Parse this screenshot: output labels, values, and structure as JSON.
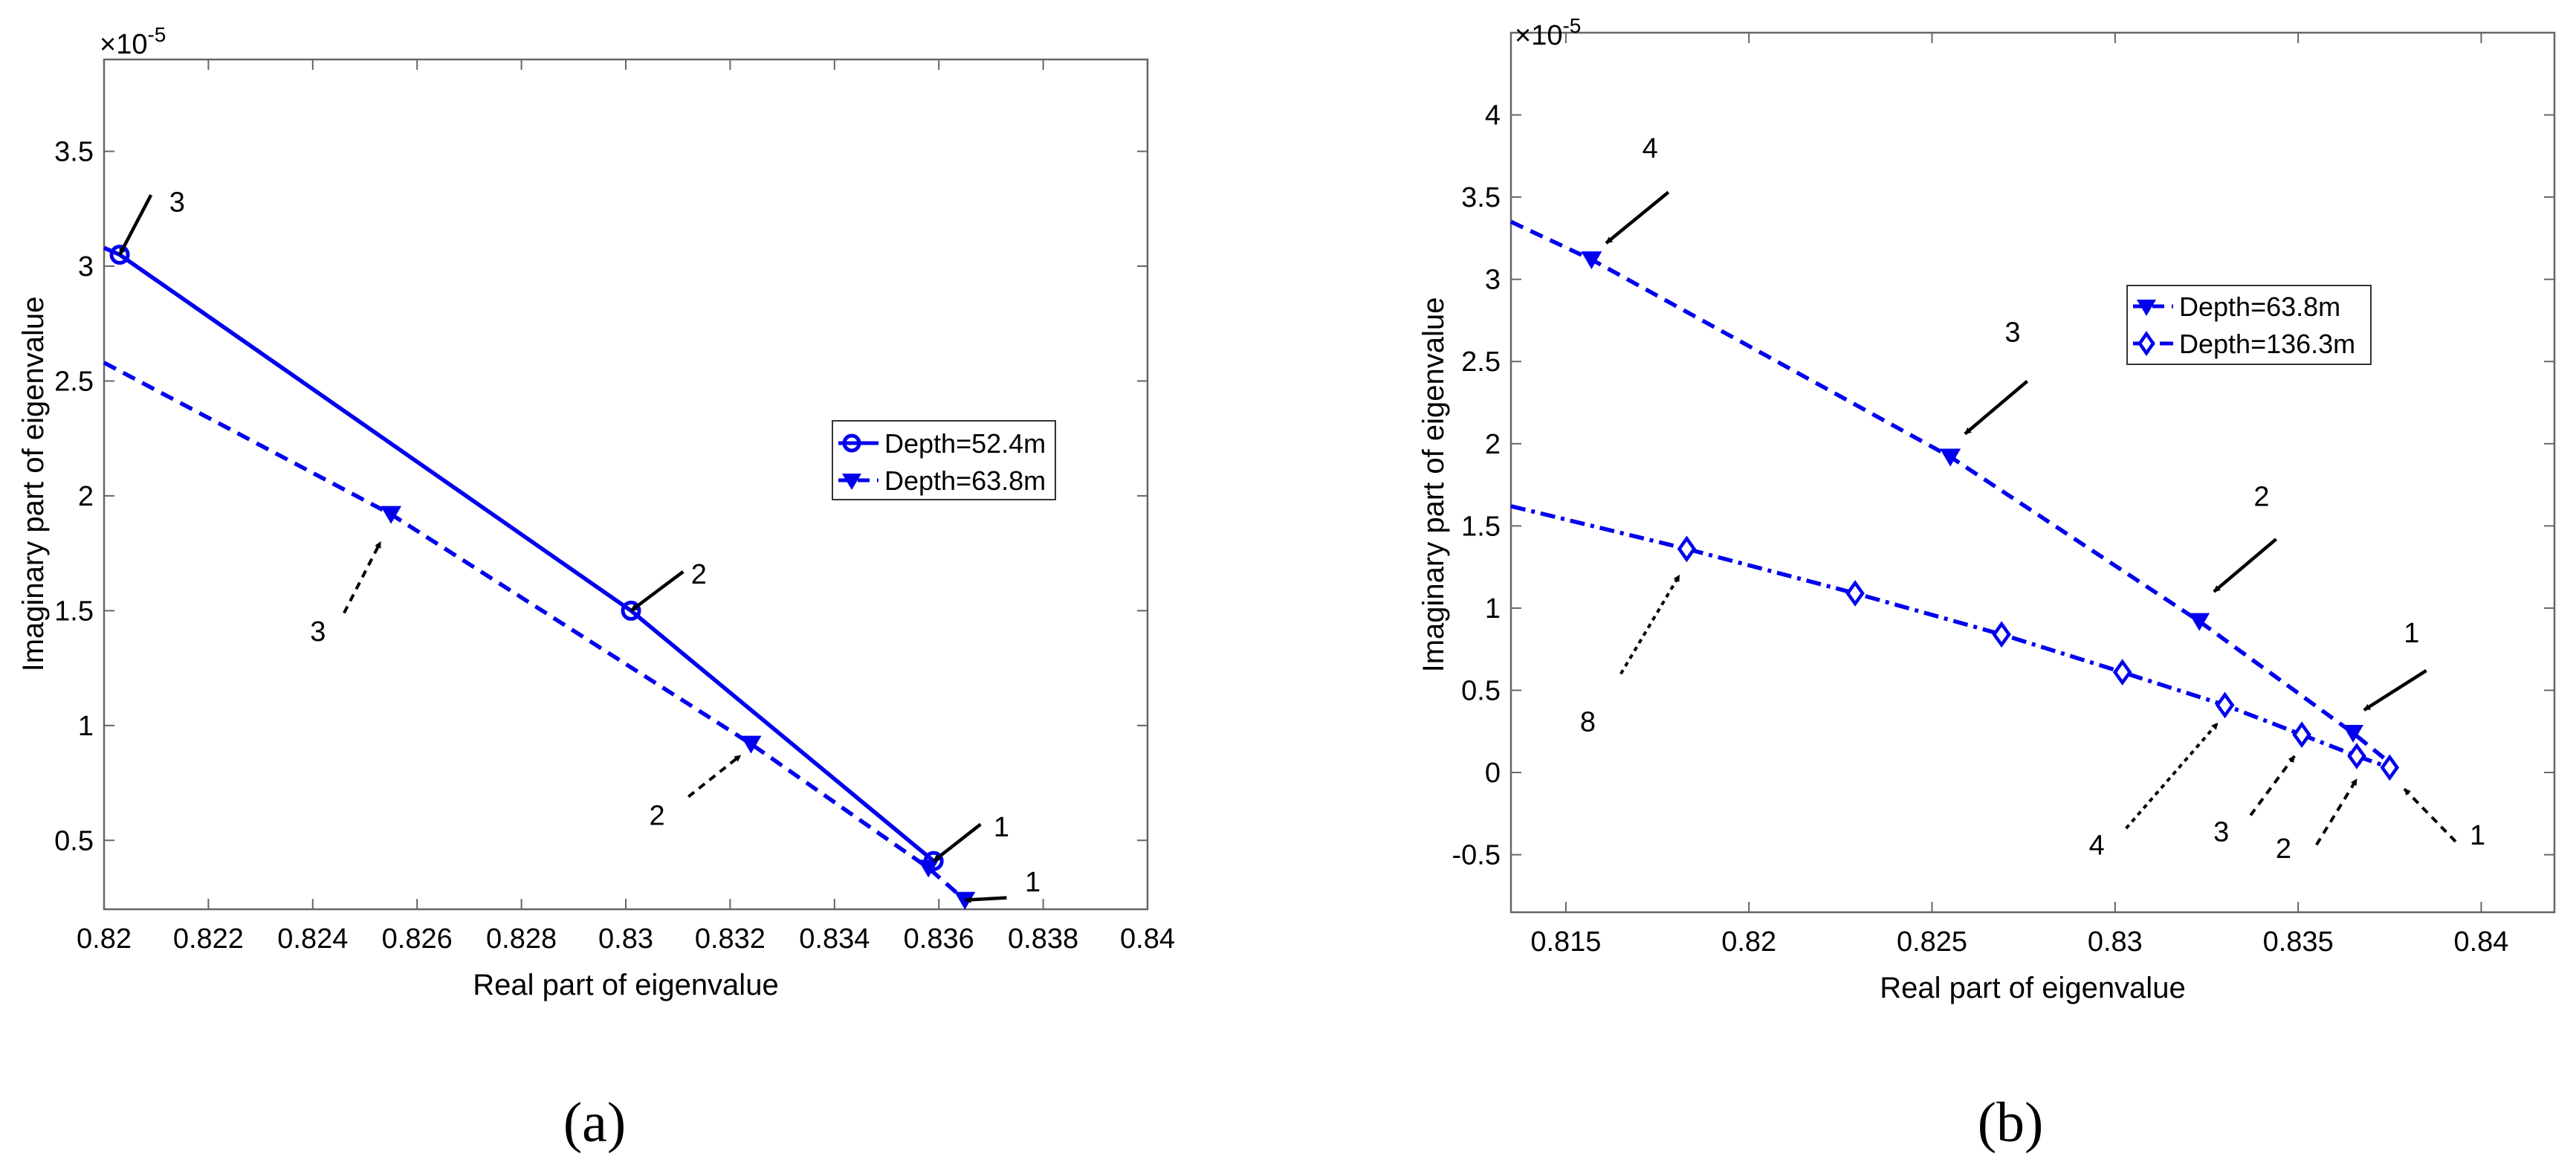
{
  "chart_data": [
    {
      "type": "line",
      "panel_label": "(a)",
      "title": "",
      "xlabel": "Real part of eigenvalue",
      "ylabel": "Imaginary part of eigenvalue",
      "y_multiplier": "×10-5",
      "y_multiplier_base": "×10",
      "y_multiplier_exp": "-5",
      "xlim": [
        0.82,
        0.84
      ],
      "ylim": [
        0.2,
        3.9
      ],
      "x_ticks": [
        0.82,
        0.822,
        0.824,
        0.826,
        0.828,
        0.83,
        0.832,
        0.834,
        0.836,
        0.838,
        0.84
      ],
      "x_tick_labels": [
        "0.82",
        "0.822",
        "0.824",
        "0.826",
        "0.828",
        "0.83",
        "0.832",
        "0.834",
        "0.836",
        "0.838",
        "0.84"
      ],
      "y_ticks": [
        0.5,
        1,
        1.5,
        2,
        2.5,
        3,
        3.5
      ],
      "y_tick_labels": [
        "0.5",
        "1",
        "1.5",
        "2",
        "2.5",
        "3",
        "3.5"
      ],
      "grid": false,
      "legend_position": "right",
      "series": [
        {
          "name": "Depth=52.4m",
          "marker": "circle",
          "line_style": "solid",
          "color": "#0000ee",
          "x": [
            0.82,
            0.8203,
            0.8301,
            0.8359
          ],
          "y": [
            3.08,
            3.05,
            1.5,
            0.41
          ],
          "marker_x": [
            0.8203,
            0.8301,
            0.8359
          ],
          "marker_y": [
            3.05,
            1.5,
            0.41
          ]
        },
        {
          "name": "Depth=63.8m",
          "marker": "triangle-down",
          "line_style": "dashed",
          "color": "#0000ee",
          "x": [
            0.82,
            0.8255,
            0.8324,
            0.8358,
            0.8365
          ],
          "y": [
            2.58,
            1.92,
            0.92,
            0.38,
            0.24
          ],
          "marker_x": [
            0.8255,
            0.8324,
            0.8358,
            0.8365
          ],
          "marker_y": [
            1.92,
            0.92,
            0.38,
            0.24
          ]
        }
      ],
      "annotations": [
        {
          "label": "3",
          "style": "solid",
          "tip": [
            0.8203,
            3.05
          ],
          "tail": [
            0.8209,
            3.31
          ],
          "label_at": [
            0.8214,
            3.28
          ]
        },
        {
          "label": "2",
          "style": "solid",
          "tip": [
            0.8301,
            1.5
          ],
          "tail": [
            0.8311,
            1.67
          ],
          "label_at": [
            0.8314,
            1.66
          ]
        },
        {
          "label": "1",
          "style": "solid",
          "tip": [
            0.8359,
            0.41
          ],
          "tail": [
            0.8368,
            0.57
          ],
          "label_at": [
            0.8372,
            0.56
          ]
        },
        {
          "label": "1",
          "style": "solid",
          "tip": [
            0.8365,
            0.24
          ],
          "tail": [
            0.8373,
            0.25
          ],
          "label_at": [
            0.8378,
            0.32
          ]
        },
        {
          "label": "3",
          "style": "dashed",
          "tip": [
            0.8253,
            1.8
          ],
          "tail": [
            0.8246,
            1.49
          ],
          "label_at": [
            0.8241,
            1.41
          ]
        },
        {
          "label": "2",
          "style": "dashed",
          "tip": [
            0.8322,
            0.87
          ],
          "tail": [
            0.8312,
            0.69
          ],
          "label_at": [
            0.8306,
            0.61
          ]
        }
      ]
    },
    {
      "type": "line",
      "panel_label": "(b)",
      "title": "",
      "xlabel": "Real part of eigenvalue",
      "ylabel": "Imaginary part of eigenvalue",
      "y_multiplier": "×10-5",
      "y_multiplier_base": "×10",
      "y_multiplier_exp": "-5",
      "xlim": [
        0.8135,
        0.842
      ],
      "ylim": [
        -0.85,
        4.5
      ],
      "x_ticks": [
        0.815,
        0.82,
        0.825,
        0.83,
        0.835,
        0.84
      ],
      "x_tick_labels": [
        "0.815",
        "0.82",
        "0.825",
        "0.83",
        "0.835",
        "0.84"
      ],
      "y_ticks": [
        -0.5,
        0,
        0.5,
        1,
        1.5,
        2,
        2.5,
        3,
        3.5,
        4
      ],
      "y_tick_labels": [
        "-0.5",
        "0",
        "0.5",
        "1",
        "1.5",
        "2",
        "2.5",
        "3",
        "3.5",
        "4"
      ],
      "grid": false,
      "legend_position": "top-right",
      "series": [
        {
          "name": "Depth=63.8m",
          "marker": "triangle-down",
          "line_style": "dashed",
          "color": "#0000ee",
          "x": [
            0.8135,
            0.8157,
            0.8255,
            0.8323,
            0.8365,
            0.8375
          ],
          "y": [
            3.35,
            3.12,
            1.92,
            0.92,
            0.24,
            0.06
          ],
          "marker_x": [
            0.8157,
            0.8255,
            0.8323,
            0.8365
          ],
          "marker_y": [
            3.12,
            1.92,
            0.92,
            0.24
          ]
        },
        {
          "name": "Depth=136.3m",
          "marker": "diamond",
          "line_style": "dash-dot",
          "color": "#0000ee",
          "x": [
            0.8135,
            0.8183,
            0.8229,
            0.8269,
            0.8302,
            0.833,
            0.8351,
            0.8366,
            0.8375
          ],
          "y": [
            1.62,
            1.36,
            1.09,
            0.84,
            0.61,
            0.41,
            0.23,
            0.1,
            0.03
          ],
          "marker_x": [
            0.8183,
            0.8229,
            0.8269,
            0.8302,
            0.833,
            0.8351,
            0.8366,
            0.8375
          ],
          "marker_y": [
            1.36,
            1.09,
            0.84,
            0.61,
            0.41,
            0.23,
            0.1,
            0.03
          ]
        }
      ],
      "annotations": [
        {
          "label": "4",
          "style": "solid",
          "tip": [
            0.8161,
            3.22
          ],
          "tail": [
            0.8178,
            3.53
          ],
          "label_at": [
            0.8173,
            3.8
          ]
        },
        {
          "label": "3",
          "style": "solid",
          "tip": [
            0.8259,
            2.06
          ],
          "tail": [
            0.8276,
            2.38
          ],
          "label_at": [
            0.8272,
            2.68
          ]
        },
        {
          "label": "2",
          "style": "solid",
          "tip": [
            0.8327,
            1.1
          ],
          "tail": [
            0.8344,
            1.42
          ],
          "label_at": [
            0.834,
            1.68
          ]
        },
        {
          "label": "1",
          "style": "solid",
          "tip": [
            0.8368,
            0.38
          ],
          "tail": [
            0.8385,
            0.62
          ],
          "label_at": [
            0.8381,
            0.85
          ]
        },
        {
          "label": "8",
          "style": "dashed",
          "tip": [
            0.8181,
            1.2
          ],
          "tail": [
            0.8165,
            0.6
          ],
          "label_at": [
            0.8156,
            0.31
          ]
        },
        {
          "label": "4",
          "style": "dashed",
          "tip": [
            0.8328,
            0.3
          ],
          "tail": [
            0.8303,
            -0.34
          ],
          "label_at": [
            0.8295,
            -0.44
          ]
        },
        {
          "label": "3",
          "style": "dashed",
          "tip": [
            0.8349,
            0.1
          ],
          "tail": [
            0.8337,
            -0.26
          ],
          "label_at": [
            0.8329,
            -0.36
          ]
        },
        {
          "label": "2",
          "style": "dashed",
          "tip": [
            0.8366,
            -0.04
          ],
          "tail": [
            0.8355,
            -0.44
          ],
          "label_at": [
            0.8346,
            -0.46
          ]
        },
        {
          "label": "1",
          "style": "dashed",
          "tip": [
            0.8379,
            -0.1
          ],
          "tail": [
            0.8393,
            -0.42
          ],
          "label_at": [
            0.8399,
            -0.38
          ]
        }
      ]
    }
  ]
}
